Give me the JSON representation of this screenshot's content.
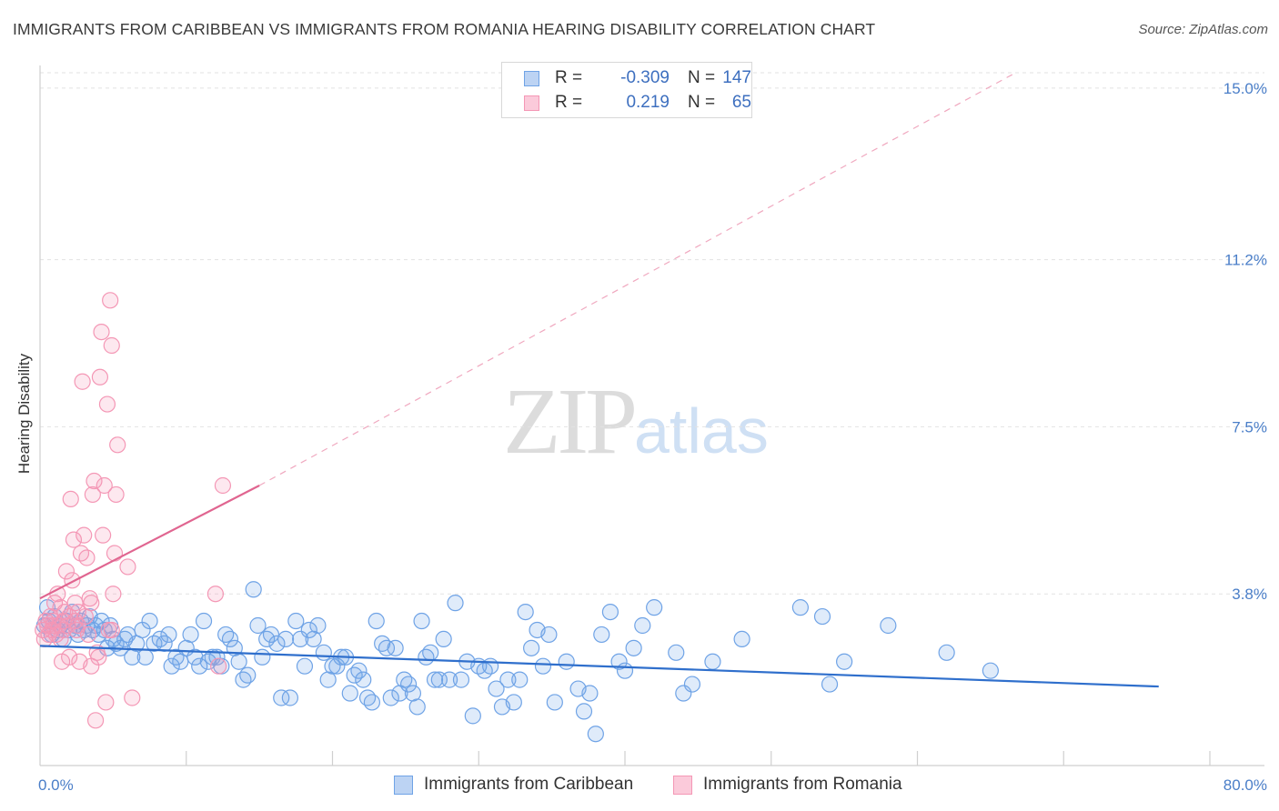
{
  "title": "IMMIGRANTS FROM CARIBBEAN VS IMMIGRANTS FROM ROMANIA HEARING DISABILITY CORRELATION CHART",
  "source": "Source: ZipAtlas.com",
  "watermark": {
    "zip": "ZIP",
    "atlas": "atlas"
  },
  "legend": {
    "rows": [
      {
        "r_label": "R =",
        "r_value": "-0.309",
        "n_label": "N =",
        "n_value": "147"
      },
      {
        "r_label": "R =",
        "r_value": "0.219",
        "n_label": "N =",
        "n_value": "65"
      }
    ]
  },
  "chart_data": {
    "type": "scatter",
    "title": "IMMIGRANTS FROM CARIBBEAN VS IMMIGRANTS FROM ROMANIA HEARING DISABILITY CORRELATION CHART",
    "xlabel": "",
    "ylabel": "Hearing Disability",
    "xlim": [
      0,
      80
    ],
    "ylim": [
      0,
      15.5
    ],
    "x_tick_labels": [
      "0.0%",
      "80.0%"
    ],
    "y_ticks": [
      3.8,
      7.5,
      11.2,
      15.0
    ],
    "y_tick_labels": [
      "3.8%",
      "7.5%",
      "11.2%",
      "15.0%"
    ],
    "grid": true,
    "series": [
      {
        "name": "Immigrants from Caribbean",
        "color": "#6fa3e6",
        "trend_color": "#2f6fcc",
        "trend": {
          "x0": 0,
          "y0": 2.65,
          "x1": 76.5,
          "y1": 1.75
        },
        "points": [
          [
            0.3,
            3.1
          ],
          [
            0.5,
            3.5
          ],
          [
            0.6,
            3.2
          ],
          [
            0.8,
            2.9
          ],
          [
            1.0,
            3.3
          ],
          [
            1.2,
            3.0
          ],
          [
            1.4,
            3.1
          ],
          [
            1.6,
            2.8
          ],
          [
            1.8,
            3.2
          ],
          [
            2.0,
            3.0
          ],
          [
            2.2,
            3.4
          ],
          [
            2.4,
            3.1
          ],
          [
            2.6,
            2.9
          ],
          [
            2.8,
            3.2
          ],
          [
            3.0,
            3.0
          ],
          [
            3.2,
            3.1
          ],
          [
            3.4,
            3.3
          ],
          [
            3.6,
            3.0
          ],
          [
            3.8,
            3.1
          ],
          [
            4.0,
            2.9
          ],
          [
            4.2,
            3.2
          ],
          [
            4.4,
            3.0
          ],
          [
            4.6,
            2.6
          ],
          [
            4.8,
            3.1
          ],
          [
            5.0,
            2.8
          ],
          [
            5.2,
            2.7
          ],
          [
            5.5,
            2.6
          ],
          [
            5.8,
            2.8
          ],
          [
            6.0,
            2.9
          ],
          [
            6.3,
            2.4
          ],
          [
            6.6,
            2.7
          ],
          [
            7.0,
            3.0
          ],
          [
            7.2,
            2.4
          ],
          [
            7.5,
            3.2
          ],
          [
            7.8,
            2.7
          ],
          [
            8.2,
            2.8
          ],
          [
            8.5,
            2.7
          ],
          [
            8.8,
            2.9
          ],
          [
            9.0,
            2.2
          ],
          [
            9.3,
            2.4
          ],
          [
            9.6,
            2.3
          ],
          [
            10.0,
            2.6
          ],
          [
            10.3,
            2.9
          ],
          [
            10.6,
            2.4
          ],
          [
            10.9,
            2.2
          ],
          [
            11.2,
            3.2
          ],
          [
            11.5,
            2.3
          ],
          [
            11.8,
            2.4
          ],
          [
            12.1,
            2.4
          ],
          [
            12.4,
            2.2
          ],
          [
            12.7,
            2.9
          ],
          [
            13.0,
            2.8
          ],
          [
            13.3,
            2.6
          ],
          [
            13.6,
            2.3
          ],
          [
            13.9,
            1.9
          ],
          [
            14.2,
            2.0
          ],
          [
            14.6,
            3.9
          ],
          [
            14.9,
            3.1
          ],
          [
            15.2,
            2.4
          ],
          [
            15.5,
            2.8
          ],
          [
            15.8,
            2.9
          ],
          [
            16.2,
            2.7
          ],
          [
            16.5,
            1.5
          ],
          [
            16.8,
            2.8
          ],
          [
            17.1,
            1.5
          ],
          [
            17.5,
            3.2
          ],
          [
            17.8,
            2.8
          ],
          [
            18.1,
            2.2
          ],
          [
            18.4,
            3.0
          ],
          [
            18.7,
            2.8
          ],
          [
            19.0,
            3.1
          ],
          [
            19.4,
            2.5
          ],
          [
            19.7,
            1.9
          ],
          [
            20.0,
            2.2
          ],
          [
            20.3,
            2.2
          ],
          [
            20.6,
            2.4
          ],
          [
            20.9,
            2.4
          ],
          [
            21.2,
            1.6
          ],
          [
            21.5,
            2.0
          ],
          [
            21.8,
            2.1
          ],
          [
            22.1,
            1.9
          ],
          [
            22.4,
            1.5
          ],
          [
            22.7,
            1.4
          ],
          [
            23.0,
            3.2
          ],
          [
            23.4,
            2.7
          ],
          [
            23.7,
            2.6
          ],
          [
            24.0,
            1.5
          ],
          [
            24.3,
            2.6
          ],
          [
            24.6,
            1.6
          ],
          [
            24.9,
            1.9
          ],
          [
            25.2,
            1.8
          ],
          [
            25.5,
            1.6
          ],
          [
            25.8,
            1.3
          ],
          [
            26.1,
            3.2
          ],
          [
            26.4,
            2.4
          ],
          [
            26.7,
            2.5
          ],
          [
            27.0,
            1.9
          ],
          [
            27.3,
            1.9
          ],
          [
            27.6,
            2.8
          ],
          [
            28.0,
            1.9
          ],
          [
            28.4,
            3.6
          ],
          [
            28.8,
            1.9
          ],
          [
            29.2,
            2.3
          ],
          [
            29.6,
            1.1
          ],
          [
            30.0,
            2.2
          ],
          [
            30.4,
            2.1
          ],
          [
            30.8,
            2.2
          ],
          [
            31.2,
            1.7
          ],
          [
            31.6,
            1.3
          ],
          [
            32.0,
            1.9
          ],
          [
            32.4,
            1.4
          ],
          [
            32.8,
            1.9
          ],
          [
            33.2,
            3.4
          ],
          [
            33.6,
            2.6
          ],
          [
            34.0,
            3.0
          ],
          [
            34.4,
            2.2
          ],
          [
            34.8,
            2.9
          ],
          [
            35.2,
            1.4
          ],
          [
            36.0,
            2.3
          ],
          [
            36.8,
            1.7
          ],
          [
            37.2,
            1.2
          ],
          [
            37.6,
            1.6
          ],
          [
            38.0,
            0.7
          ],
          [
            38.4,
            2.9
          ],
          [
            39.0,
            3.4
          ],
          [
            39.6,
            2.3
          ],
          [
            40.0,
            2.1
          ],
          [
            40.6,
            2.6
          ],
          [
            41.2,
            3.1
          ],
          [
            42.0,
            3.5
          ],
          [
            43.5,
            2.5
          ],
          [
            44.0,
            1.6
          ],
          [
            44.6,
            1.8
          ],
          [
            46.0,
            2.3
          ],
          [
            48.0,
            2.8
          ],
          [
            52.0,
            3.5
          ],
          [
            53.5,
            3.3
          ],
          [
            54.0,
            1.8
          ],
          [
            55.0,
            2.3
          ],
          [
            58.0,
            3.1
          ],
          [
            62.0,
            2.5
          ],
          [
            65.0,
            2.1
          ]
        ]
      },
      {
        "name": "Immigrants from Romania",
        "color": "#f497b5",
        "trend_color": "#e06590",
        "trend": {
          "x0": 0,
          "y0": 3.7,
          "x1": 15.0,
          "y1": 6.2
        },
        "trend_extension": {
          "x0": 15.0,
          "y0": 6.2,
          "x1": 66.5,
          "y1": 15.3
        },
        "points": [
          [
            0.2,
            3.0
          ],
          [
            0.3,
            2.8
          ],
          [
            0.4,
            3.2
          ],
          [
            0.5,
            3.1
          ],
          [
            0.6,
            2.9
          ],
          [
            0.7,
            3.3
          ],
          [
            0.8,
            3.0
          ],
          [
            0.9,
            3.1
          ],
          [
            1.0,
            3.6
          ],
          [
            1.1,
            2.9
          ],
          [
            1.2,
            3.8
          ],
          [
            1.3,
            3.1
          ],
          [
            1.4,
            3.5
          ],
          [
            1.5,
            2.3
          ],
          [
            1.6,
            3.2
          ],
          [
            1.7,
            3.4
          ],
          [
            1.8,
            4.3
          ],
          [
            1.9,
            3.1
          ],
          [
            2.0,
            3.3
          ],
          [
            2.0,
            2.4
          ],
          [
            2.1,
            5.9
          ],
          [
            2.2,
            4.1
          ],
          [
            2.3,
            5.0
          ],
          [
            2.4,
            3.6
          ],
          [
            2.5,
            3.0
          ],
          [
            2.6,
            3.4
          ],
          [
            2.7,
            2.3
          ],
          [
            2.8,
            4.7
          ],
          [
            2.9,
            8.5
          ],
          [
            3.0,
            5.1
          ],
          [
            3.1,
            3.3
          ],
          [
            3.2,
            4.6
          ],
          [
            3.3,
            2.9
          ],
          [
            3.4,
            3.7
          ],
          [
            3.5,
            2.2
          ],
          [
            3.6,
            6.0
          ],
          [
            3.7,
            6.3
          ],
          [
            3.8,
            1.0
          ],
          [
            3.9,
            2.5
          ],
          [
            4.0,
            2.4
          ],
          [
            4.1,
            8.6
          ],
          [
            4.2,
            9.6
          ],
          [
            4.3,
            5.1
          ],
          [
            4.4,
            6.2
          ],
          [
            4.5,
            1.4
          ],
          [
            4.6,
            8.0
          ],
          [
            4.7,
            3.0
          ],
          [
            4.8,
            10.3
          ],
          [
            4.9,
            9.3
          ],
          [
            5.0,
            3.8
          ],
          [
            5.1,
            4.7
          ],
          [
            5.2,
            6.0
          ],
          [
            5.3,
            7.1
          ],
          [
            6.0,
            4.4
          ],
          [
            6.3,
            1.5
          ],
          [
            12.0,
            3.8
          ],
          [
            12.5,
            6.2
          ],
          [
            1.6,
            3.0
          ],
          [
            2.4,
            3.2
          ],
          [
            3.5,
            3.6
          ],
          [
            1.4,
            2.8
          ],
          [
            0.9,
            3.2
          ],
          [
            2.6,
            3.1
          ],
          [
            4.9,
            3.0
          ],
          [
            12.2,
            2.2
          ]
        ]
      }
    ]
  }
}
